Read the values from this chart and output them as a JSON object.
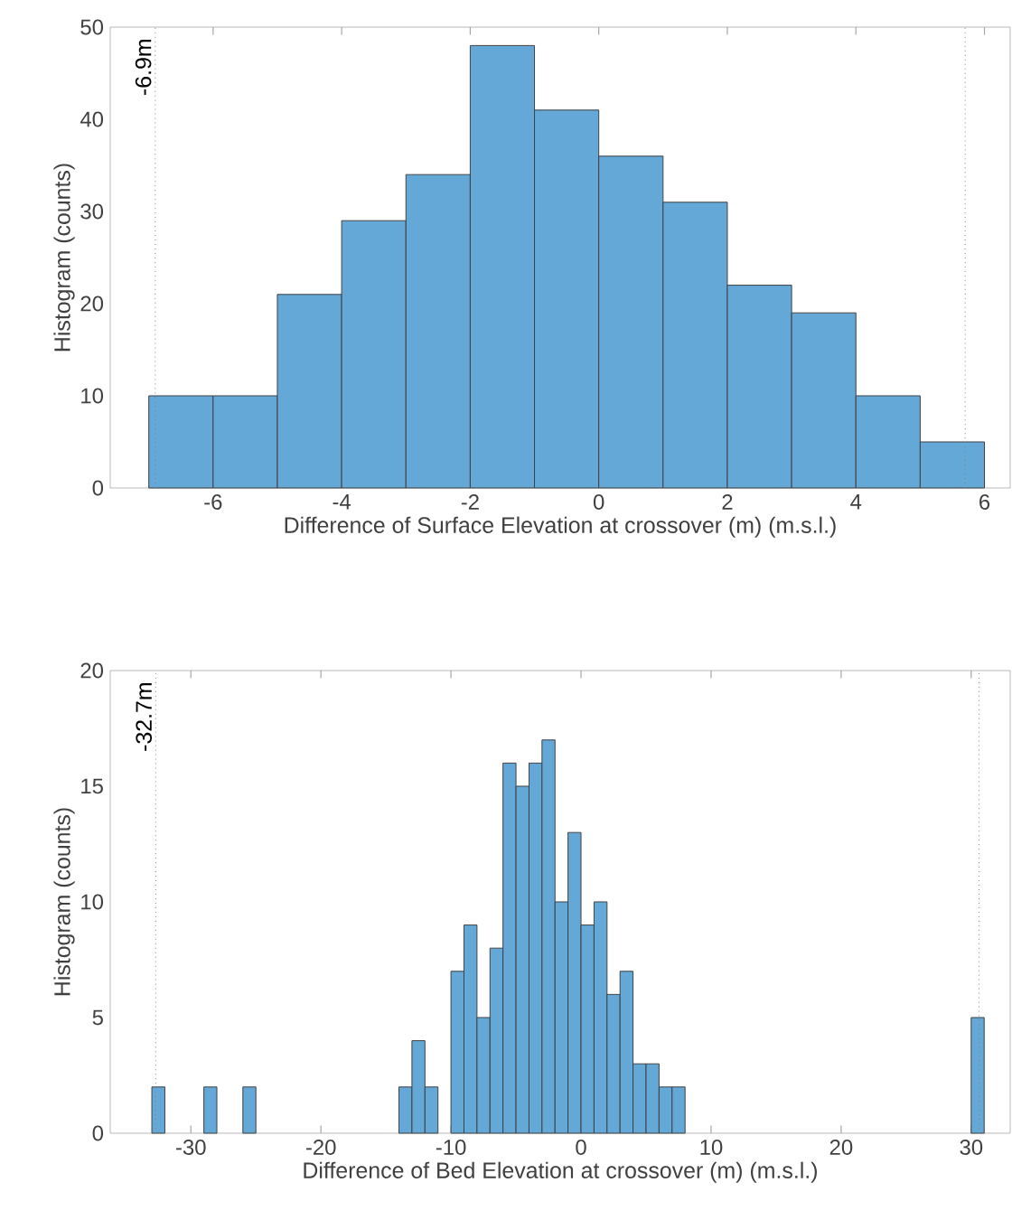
{
  "chart_data": [
    {
      "type": "histogram",
      "xlabel": "Difference of Surface Elevation at crossover (m) (m.s.l.)",
      "ylabel": "Histogram (counts)",
      "bins": [
        -7,
        -6,
        -5,
        -4,
        -3,
        -2,
        -1,
        0,
        1,
        2,
        3,
        4,
        5,
        6
      ],
      "values": [
        10,
        10,
        21,
        29,
        34,
        48,
        41,
        36,
        31,
        22,
        19,
        10,
        5
      ],
      "color": "#64a8d8",
      "xlim": [
        -7.6,
        6.4
      ],
      "xticks": [
        -6,
        -4,
        -2,
        0,
        2,
        4,
        6
      ],
      "ylim": [
        0,
        50
      ],
      "yticks": [
        0,
        10,
        20,
        30,
        40,
        50
      ],
      "ref_lines": [
        {
          "axis": "x",
          "value": -6.9,
          "label": "-6.9m",
          "line_style": "dotted"
        },
        {
          "axis": "x",
          "value": 5.7,
          "line_style": "dotted"
        }
      ]
    },
    {
      "type": "histogram",
      "xlabel": "Difference of Bed Elevation at crossover (m) (m.s.l.)",
      "ylabel": "Histogram (counts)",
      "bins": [
        -33,
        -32,
        -31,
        -30,
        -29,
        -28,
        -27,
        -26,
        -25,
        -24,
        -23,
        -22,
        -21,
        -20,
        -19,
        -18,
        -17,
        -16,
        -15,
        -14,
        -13,
        -12,
        -11,
        -10,
        -9,
        -8,
        -7,
        -6,
        -5,
        -4,
        -3,
        -2,
        -1,
        0,
        1,
        2,
        3,
        4,
        5,
        6,
        7,
        8,
        9,
        10,
        11,
        12,
        13,
        14,
        15,
        16,
        17,
        18,
        19,
        20,
        21,
        22,
        23,
        24,
        25,
        26,
        27,
        28,
        29,
        30,
        31
      ],
      "values": [
        2,
        0,
        0,
        0,
        2,
        0,
        0,
        2,
        0,
        0,
        0,
        0,
        0,
        0,
        0,
        0,
        0,
        0,
        0,
        2,
        4,
        2,
        0,
        7,
        9,
        5,
        8,
        16,
        15,
        16,
        17,
        10,
        13,
        9,
        10,
        6,
        7,
        3,
        3,
        2,
        2,
        0,
        0,
        0,
        0,
        0,
        0,
        0,
        0,
        0,
        0,
        0,
        0,
        0,
        0,
        0,
        0,
        0,
        0,
        0,
        0,
        0,
        0,
        5
      ],
      "color": "#64a8d8",
      "xlim": [
        -36.2,
        33
      ],
      "xticks": [
        -30,
        -20,
        -10,
        0,
        10,
        20,
        30
      ],
      "ylim": [
        0,
        20
      ],
      "yticks": [
        0,
        5,
        10,
        15,
        20
      ],
      "ref_lines": [
        {
          "axis": "x",
          "value": -32.7,
          "label": "-32.7m",
          "line_style": "dotted"
        },
        {
          "axis": "x",
          "value": 30.6,
          "line_style": "dotted"
        }
      ]
    }
  ]
}
